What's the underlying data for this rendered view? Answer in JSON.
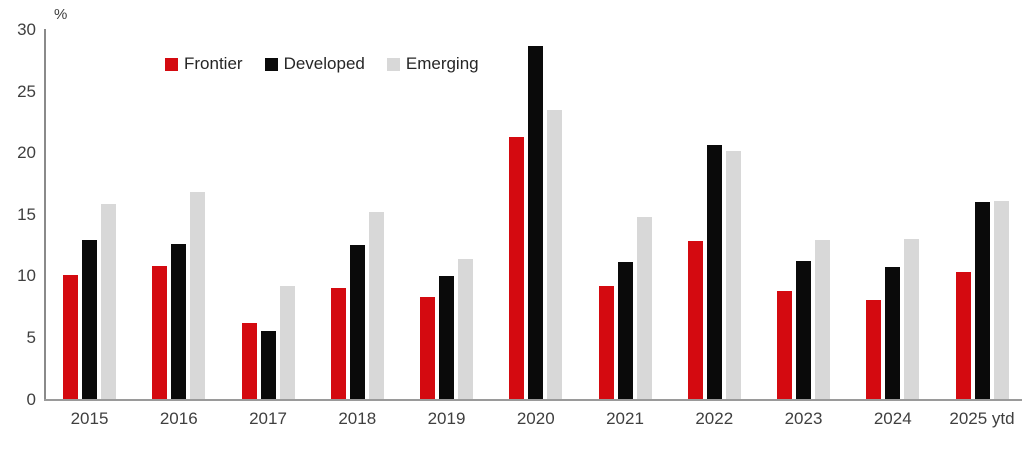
{
  "colors": {
    "background": "#ffffff",
    "axis_line": "#8a8a8a",
    "tick_text": "#3f3f3f",
    "frontier_red": "#d40a10",
    "developed_black": "#0a0a0a",
    "emerging_gray": "#d8d8d8"
  },
  "chart_data": {
    "type": "bar",
    "title": "",
    "xlabel": "",
    "ylabel": "%",
    "ylim": [
      0,
      30
    ],
    "ytick_labels": [
      "0",
      "5",
      "10",
      "15",
      "20",
      "25",
      "30"
    ],
    "grid": false,
    "legend_position": "top-left",
    "categories": [
      "2015",
      "2016",
      "2017",
      "2018",
      "2019",
      "2020",
      "2021",
      "2022",
      "2023",
      "2024",
      "2025 ytd"
    ],
    "series": [
      {
        "name": "Frontier",
        "color": "#d40a10",
        "values": [
          10.1,
          10.8,
          6.2,
          9.0,
          8.3,
          21.3,
          9.2,
          12.8,
          8.8,
          8.0,
          10.3
        ]
      },
      {
        "name": "Developed",
        "color": "#0a0a0a",
        "values": [
          12.9,
          12.6,
          5.5,
          12.5,
          10.0,
          28.7,
          11.1,
          20.6,
          11.2,
          10.7,
          16.0
        ]
      },
      {
        "name": "Emerging",
        "color": "#d8d8d8",
        "values": [
          15.8,
          16.8,
          9.2,
          15.2,
          11.4,
          23.5,
          14.8,
          20.1,
          12.9,
          13.0,
          16.1
        ]
      }
    ]
  }
}
